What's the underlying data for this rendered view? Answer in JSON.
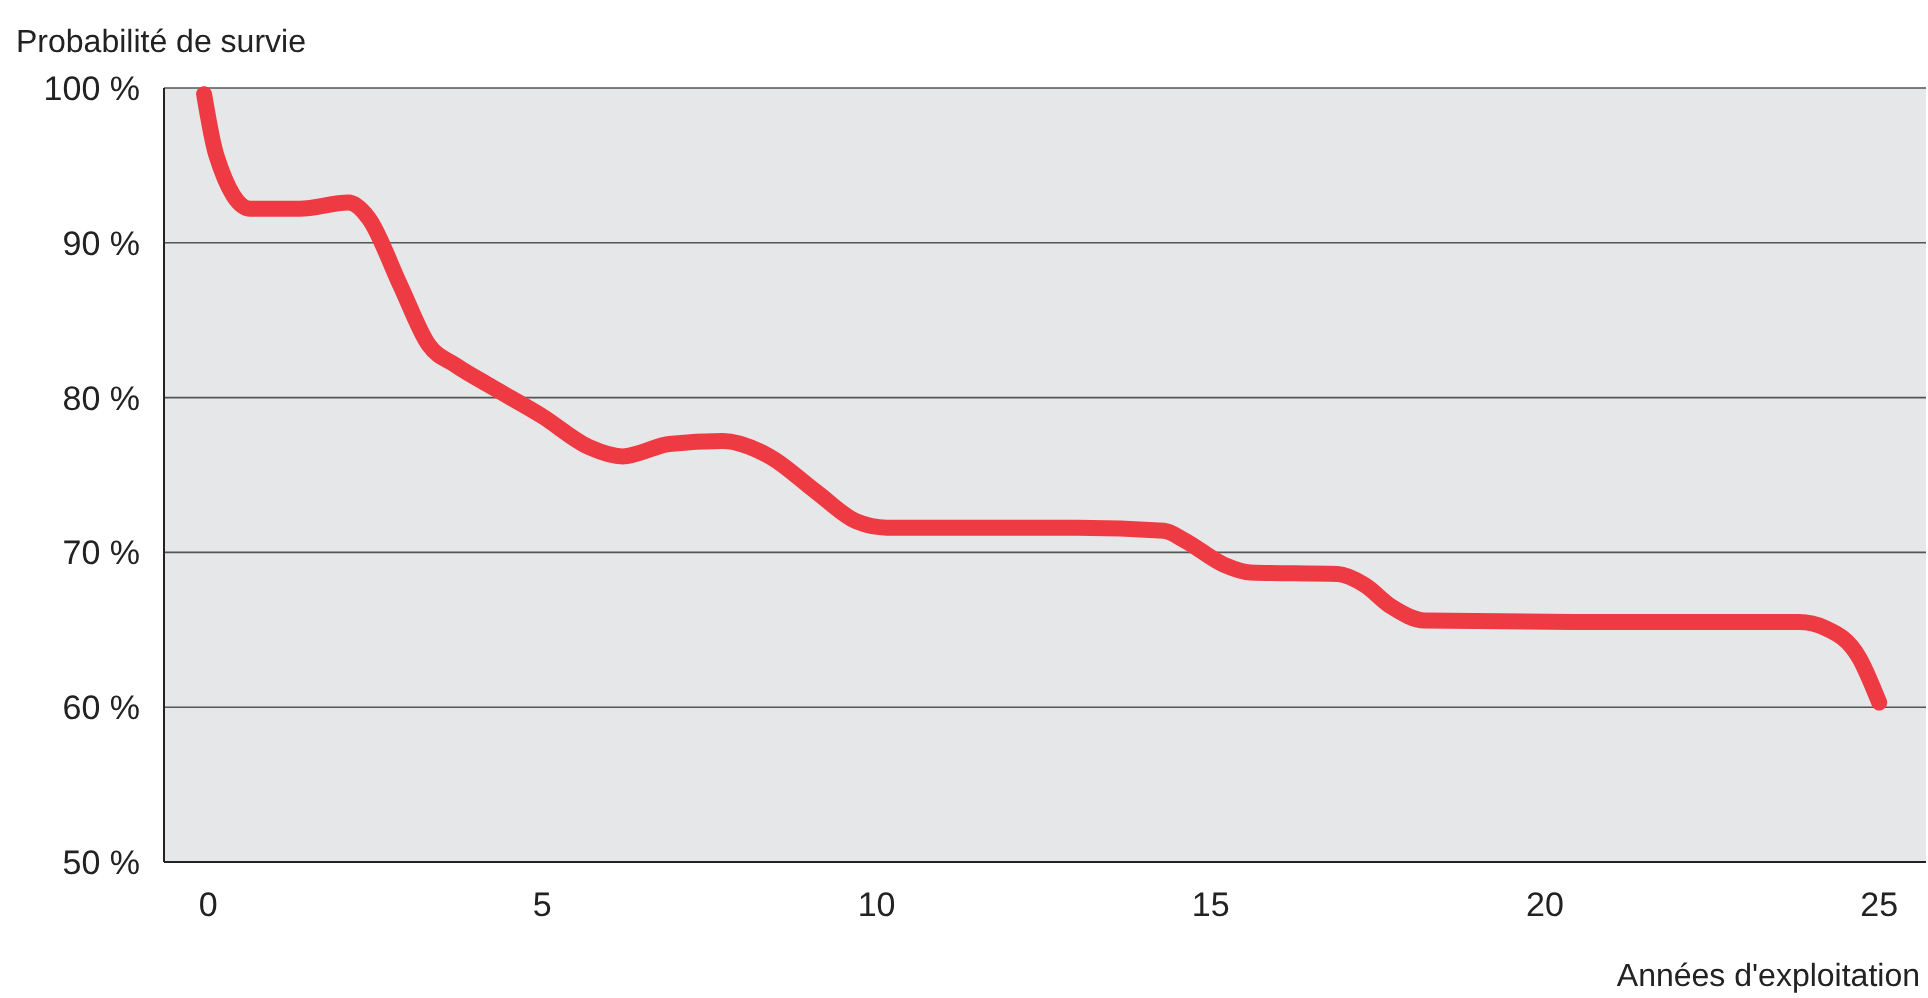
{
  "chart_data": {
    "type": "line",
    "xlabel": "Années d'exploitation",
    "ylabel": "Probabilité de survie",
    "x": [
      -0.06,
      0.12,
      0.63,
      1.37,
      2.1,
      2.4,
      2.87,
      3.3,
      3.7,
      4.2,
      5,
      5.7,
      6.2,
      6.9,
      7.7,
      8.4,
      9.1,
      9.7,
      10.15,
      11.2,
      13,
      14.3,
      14.6,
      15.2,
      15.6,
      16.9,
      17.3,
      17.7,
      18.2,
      20.8,
      23.8,
      24.2,
      24.7,
      25.0
    ],
    "series": [
      {
        "color": "#ee3b43",
        "values": [
          99.6,
          95.7,
          92.2,
          92.2,
          92.6,
          91.6,
          87.3,
          83.4,
          82.1,
          80.8,
          78.8,
          76.8,
          76.2,
          77,
          77.2,
          76.2,
          73.9,
          72,
          71.6,
          71.6,
          71.6,
          71.4,
          70.8,
          69.2,
          68.7,
          68.6,
          67.9,
          66.5,
          65.6,
          65.5,
          65.5,
          65.1,
          63.2,
          60.3
        ]
      }
    ],
    "xlim": [
      -0.66,
      25.7
    ],
    "xticks": [
      0,
      5,
      10,
      15,
      20,
      25
    ],
    "ylim": [
      50,
      100
    ],
    "yticks": [
      {
        "value": 50,
        "label": "50 %"
      },
      {
        "value": 60,
        "label": "60 %"
      },
      {
        "value": 70,
        "label": "70 %"
      },
      {
        "value": 80,
        "label": "80 %"
      },
      {
        "value": 90,
        "label": "90 %"
      },
      {
        "value": 100,
        "label": "100 %"
      }
    ],
    "grid": "y",
    "marker": "none",
    "line_style": "solid"
  }
}
